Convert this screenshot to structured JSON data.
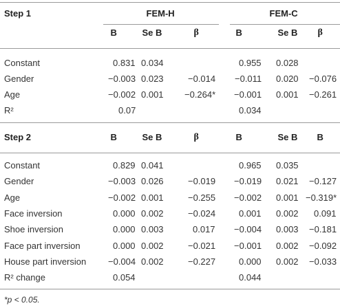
{
  "step1": {
    "title": "Step 1",
    "groups": [
      "FEM-H",
      "FEM-C"
    ],
    "columns": [
      "B",
      "Se B",
      "β",
      "B",
      "Se B",
      "β"
    ],
    "rows": [
      {
        "label": "Constant",
        "cells": [
          "0.831",
          "0.034",
          null,
          "0.955",
          "0.028",
          null
        ]
      },
      {
        "label": "Gender",
        "cells": [
          "−0.003",
          "0.023",
          "−0.014",
          "−0.011",
          "0.020",
          "−0.076"
        ]
      },
      {
        "label": "Age",
        "cells": [
          "−0.002",
          "0.001",
          "−0.264*",
          "−0.001",
          "0.001",
          "−0.261"
        ]
      },
      {
        "label": "R²",
        "cells": [
          "0.07",
          null,
          null,
          "0.034",
          null,
          null
        ]
      }
    ]
  },
  "step2": {
    "title": "Step 2",
    "columns": [
      "B",
      "Se B",
      "β",
      "B",
      "Se B",
      "B"
    ],
    "rows": [
      {
        "label": "Constant",
        "cells": [
          "0.829",
          "0.041",
          null,
          "0.965",
          "0.035",
          null
        ]
      },
      {
        "label": "Gender",
        "cells": [
          "−0.003",
          "0.026",
          "−0.019",
          "−0.019",
          "0.021",
          "−0.127"
        ]
      },
      {
        "label": "Age",
        "cells": [
          "−0.002",
          "0.001",
          "−0.255",
          "−0.002",
          "0.001",
          "−0.319*"
        ]
      },
      {
        "label": "Face inversion",
        "cells": [
          "0.000",
          "0.002",
          "−0.024",
          "0.001",
          "0.002",
          "0.091"
        ]
      },
      {
        "label": "Shoe inversion",
        "cells": [
          "0.000",
          "0.003",
          "0.017",
          "−0.004",
          "0.003",
          "−0.181"
        ]
      },
      {
        "label": "Face part inversion",
        "cells": [
          "0.000",
          "0.002",
          "−0.021",
          "−0.001",
          "0.002",
          "−0.092"
        ]
      },
      {
        "label": "House part inversion",
        "cells": [
          "−0.004",
          "0.002",
          "−0.227",
          "0.000",
          "0.002",
          "−0.033"
        ]
      },
      {
        "label": "R² change",
        "cells": [
          "0.054",
          null,
          null,
          "0.044",
          null,
          null
        ]
      }
    ]
  },
  "footnote": "*p < 0.05."
}
